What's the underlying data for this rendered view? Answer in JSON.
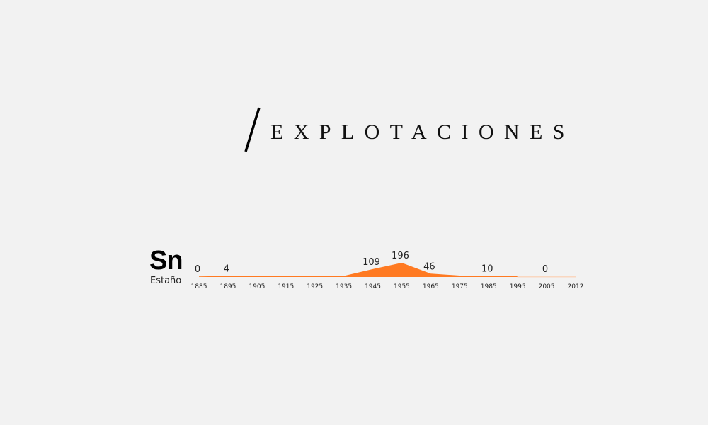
{
  "title": "EXPLOTACIONES",
  "element": {
    "symbol": "Sn",
    "name": "Estaño"
  },
  "colors": {
    "area": "#ff7a22",
    "area_faded": "#f9d7c0"
  },
  "chart_data": {
    "type": "area",
    "categories": [
      "1885",
      "1895",
      "1905",
      "1915",
      "1925",
      "1935",
      "1945",
      "1955",
      "1965",
      "1975",
      "1985",
      "1995",
      "2005",
      "2012"
    ],
    "values": [
      0,
      4,
      4,
      4,
      3,
      4,
      109,
      196,
      46,
      20,
      10,
      5,
      0,
      0
    ],
    "data_labels": {
      "1885": "0",
      "1895": "4",
      "1945": "109",
      "1955": "196",
      "1965": "46",
      "1985": "10",
      "2005": "0"
    },
    "ylim": [
      0,
      196
    ]
  }
}
